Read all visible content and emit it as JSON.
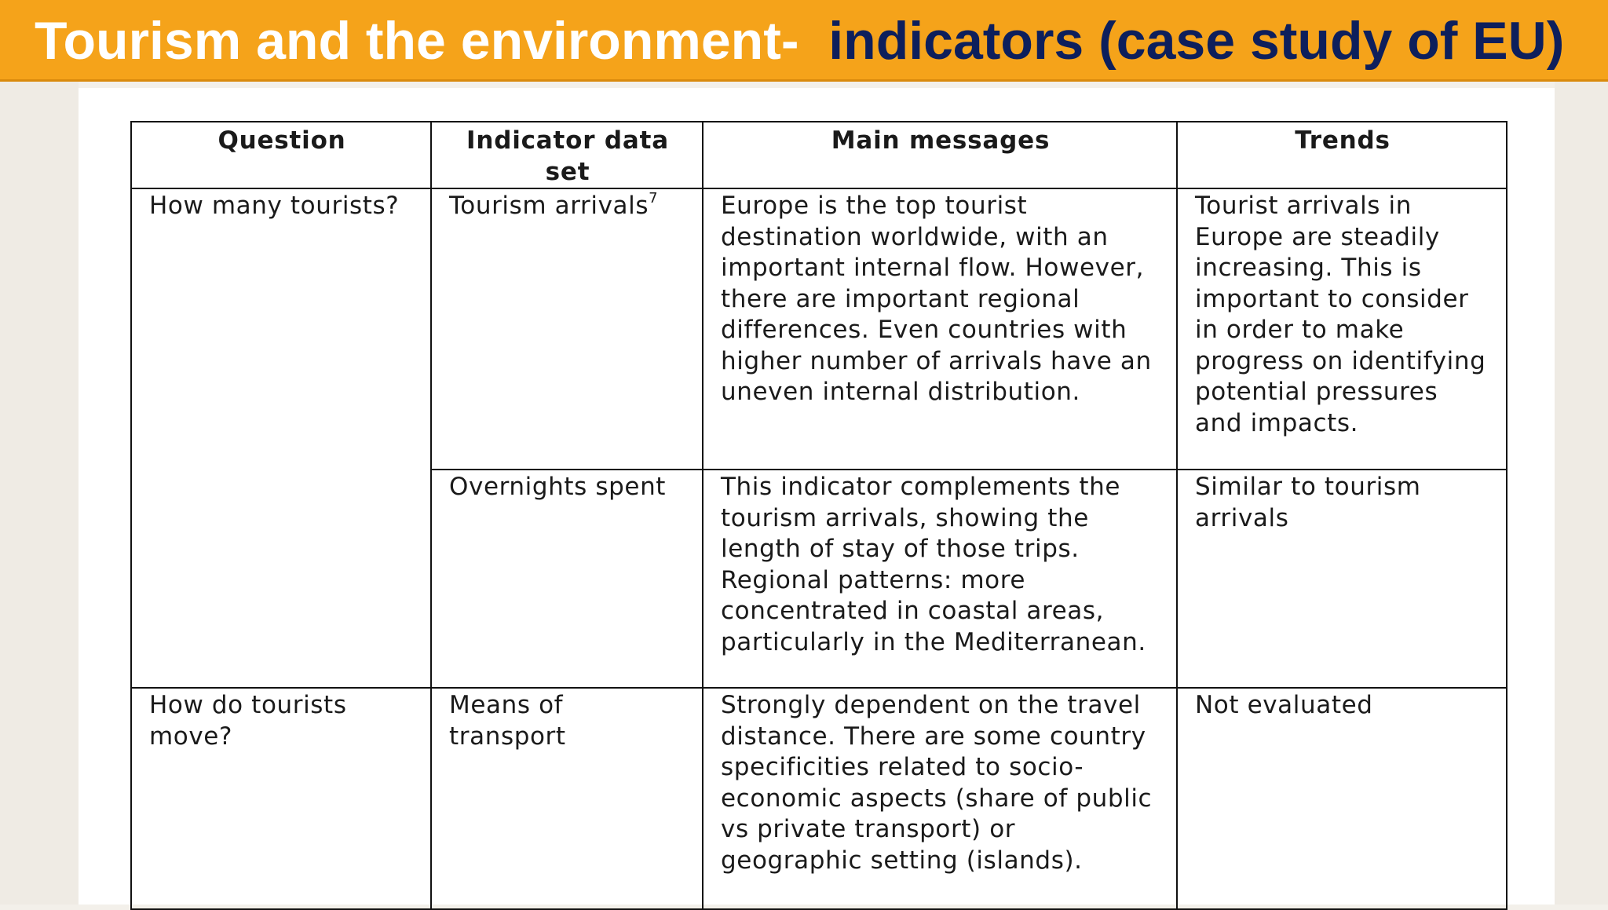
{
  "slide": {
    "title_part1": "Tourism and the environment-",
    "title_part2": "indicators (case study of EU)"
  },
  "table": {
    "headers": [
      "Question",
      "Indicator data set",
      "Main messages",
      "Trends"
    ],
    "rows": [
      {
        "question": "How many tourists?",
        "indicator": "Tourism arrivals",
        "indicator_footnote": "7",
        "message": "Europe is the top tourist destination worldwide, with an important internal flow. However, there are important regional differences. Even countries with higher number of arrivals have an uneven internal distribution.",
        "trend": "Tourist arrivals in Europe are steadily increasing. This is important to consider in order to make progress on identifying potential pressures and impacts."
      },
      {
        "indicator": "Overnights spent",
        "message": "This indicator complements the tourism arrivals, showing the length of stay of those trips. Regional patterns: more concentrated in coastal areas, particularly in the Mediterranean.",
        "trend": "Similar to tourism arrivals"
      },
      {
        "question": "How do tourists move?",
        "indicator": "Means of transport",
        "message": "Strongly dependent on the travel distance. There are some country specificities related to socio-economic aspects (share of public vs private transport) or geographic setting (islands).",
        "trend": "Not evaluated"
      }
    ]
  }
}
